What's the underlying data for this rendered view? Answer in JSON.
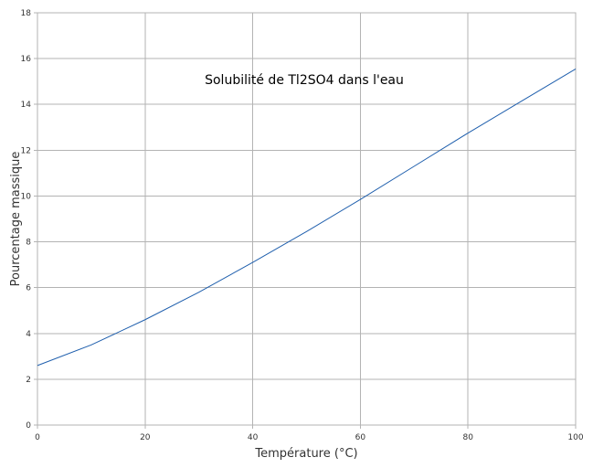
{
  "chart_data": {
    "type": "line",
    "title": "Solubilité de Tl2SO4 dans l'eau",
    "xlabel": "Température (°C)",
    "ylabel": "Pourcentage massique",
    "xlim": [
      0,
      100
    ],
    "ylim": [
      0,
      18
    ],
    "xticks": [
      0,
      20,
      40,
      60,
      80,
      100
    ],
    "yticks": [
      0,
      2,
      4,
      6,
      8,
      10,
      12,
      14,
      16,
      18
    ],
    "grid": true,
    "legend": "none",
    "colors": {
      "line": "#1f5fad",
      "grid": "#b3b3b3"
    },
    "series": [
      {
        "x": [
          0,
          10,
          20,
          30,
          40,
          50,
          60,
          70,
          80,
          90,
          100
        ],
        "y": [
          2.6,
          3.5,
          4.6,
          5.8,
          7.1,
          8.45,
          9.85,
          11.3,
          12.75,
          14.15,
          15.55
        ]
      }
    ]
  }
}
